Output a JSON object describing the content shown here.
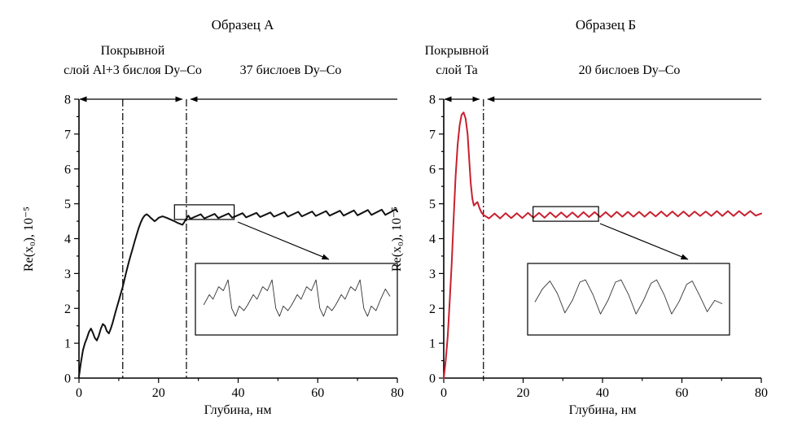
{
  "figure": {
    "background": "#ffffff"
  },
  "chart_data": [
    {
      "type": "line",
      "title": "Образец А",
      "xlabel": "Глубина, нм",
      "ylabel": "Re(x₀), 10⁻⁵",
      "xlim": [
        0,
        80
      ],
      "ylim": [
        0,
        8
      ],
      "xticks": [
        0,
        20,
        40,
        60,
        80
      ],
      "yticks": [
        0,
        1,
        2,
        3,
        4,
        5,
        6,
        7,
        8
      ],
      "color": "#111111",
      "grid": false,
      "vlines_dashdot": [
        11,
        27
      ],
      "region_boundary": 27,
      "regions": [
        {
          "label_line1": "Покрывной",
          "label_line2": "слой Al+3 бислоя Dy–Co",
          "from": 0,
          "to": 27
        },
        {
          "label": "37 бислоев Dy–Co",
          "from": 27,
          "to": 80
        }
      ],
      "zoom_box": {
        "x": [
          24,
          39
        ],
        "y": [
          4.55,
          4.97
        ]
      },
      "series": [
        {
          "points": [
            [
              0,
              0.05
            ],
            [
              0.5,
              0.45
            ],
            [
              1,
              0.8
            ],
            [
              1.5,
              1.0
            ],
            [
              2,
              1.15
            ],
            [
              2.5,
              1.32
            ],
            [
              3,
              1.42
            ],
            [
              3.5,
              1.3
            ],
            [
              4,
              1.15
            ],
            [
              4.5,
              1.08
            ],
            [
              5,
              1.22
            ],
            [
              5.5,
              1.42
            ],
            [
              6,
              1.55
            ],
            [
              6.5,
              1.5
            ],
            [
              7,
              1.35
            ],
            [
              7.5,
              1.28
            ],
            [
              8,
              1.42
            ],
            [
              8.5,
              1.6
            ],
            [
              9,
              1.82
            ],
            [
              9.5,
              2.02
            ],
            [
              10,
              2.22
            ],
            [
              10.5,
              2.42
            ],
            [
              11,
              2.62
            ],
            [
              11.5,
              2.86
            ],
            [
              12,
              3.1
            ],
            [
              12.5,
              3.32
            ],
            [
              13,
              3.52
            ],
            [
              13.5,
              3.72
            ],
            [
              14,
              3.92
            ],
            [
              14.5,
              4.12
            ],
            [
              15,
              4.3
            ],
            [
              15.5,
              4.46
            ],
            [
              16,
              4.58
            ],
            [
              16.5,
              4.66
            ],
            [
              17,
              4.7
            ],
            [
              17.5,
              4.66
            ],
            [
              18,
              4.6
            ],
            [
              18.5,
              4.55
            ],
            [
              19,
              4.5
            ],
            [
              19.5,
              4.54
            ],
            [
              20,
              4.6
            ],
            [
              21,
              4.64
            ],
            [
              22,
              4.6
            ],
            [
              23,
              4.55
            ],
            [
              24,
              4.5
            ],
            [
              25,
              4.44
            ],
            [
              26,
              4.4
            ],
            [
              26.5,
              4.48
            ],
            [
              27,
              4.58
            ],
            [
              27.5,
              4.66
            ],
            [
              28,
              4.57
            ],
            [
              30.6,
              4.7
            ],
            [
              31.5,
              4.58
            ],
            [
              34.1,
              4.71
            ],
            [
              35,
              4.59
            ],
            [
              37.6,
              4.72
            ],
            [
              38.5,
              4.6
            ],
            [
              41.1,
              4.73
            ],
            [
              42,
              4.61
            ],
            [
              44.6,
              4.74
            ],
            [
              45.5,
              4.62
            ],
            [
              48.1,
              4.75
            ],
            [
              49,
              4.63
            ],
            [
              51.6,
              4.76
            ],
            [
              52.5,
              4.63
            ],
            [
              55.1,
              4.77
            ],
            [
              56,
              4.64
            ],
            [
              58.6,
              4.78
            ],
            [
              59.5,
              4.65
            ],
            [
              62.1,
              4.79
            ],
            [
              63,
              4.66
            ],
            [
              65.6,
              4.8
            ],
            [
              66.5,
              4.66
            ],
            [
              69.1,
              4.81
            ],
            [
              70,
              4.67
            ],
            [
              72.6,
              4.82
            ],
            [
              73.5,
              4.68
            ],
            [
              76.1,
              4.83
            ],
            [
              77,
              4.68
            ],
            [
              79.6,
              4.84
            ],
            [
              80,
              4.78
            ]
          ]
        }
      ],
      "inset_points": [
        [
          0.005,
          0.6
        ],
        [
          0.035,
          0.42
        ],
        [
          0.055,
          0.5
        ],
        [
          0.085,
          0.28
        ],
        [
          0.11,
          0.35
        ],
        [
          0.135,
          0.16
        ],
        [
          0.155,
          0.66
        ],
        [
          0.175,
          0.8
        ],
        [
          0.195,
          0.62
        ],
        [
          0.22,
          0.7
        ],
        [
          0.24,
          0.6
        ],
        [
          0.27,
          0.42
        ],
        [
          0.29,
          0.5
        ],
        [
          0.32,
          0.28
        ],
        [
          0.345,
          0.35
        ],
        [
          0.37,
          0.16
        ],
        [
          0.39,
          0.66
        ],
        [
          0.41,
          0.8
        ],
        [
          0.43,
          0.62
        ],
        [
          0.455,
          0.7
        ],
        [
          0.475,
          0.6
        ],
        [
          0.505,
          0.42
        ],
        [
          0.525,
          0.5
        ],
        [
          0.555,
          0.28
        ],
        [
          0.58,
          0.35
        ],
        [
          0.605,
          0.16
        ],
        [
          0.625,
          0.66
        ],
        [
          0.645,
          0.8
        ],
        [
          0.665,
          0.62
        ],
        [
          0.69,
          0.7
        ],
        [
          0.71,
          0.6
        ],
        [
          0.74,
          0.42
        ],
        [
          0.76,
          0.5
        ],
        [
          0.79,
          0.28
        ],
        [
          0.815,
          0.35
        ],
        [
          0.84,
          0.16
        ],
        [
          0.86,
          0.66
        ],
        [
          0.88,
          0.8
        ],
        [
          0.9,
          0.62
        ],
        [
          0.925,
          0.7
        ],
        [
          0.95,
          0.5
        ],
        [
          0.975,
          0.32
        ],
        [
          1.0,
          0.45
        ]
      ]
    },
    {
      "type": "line",
      "title": "Образец Б",
      "xlabel": "Глубина, нм",
      "ylabel": "Re(x₀), 10⁻⁵",
      "xlim": [
        0,
        80
      ],
      "ylim": [
        0,
        8
      ],
      "xticks": [
        0,
        20,
        40,
        60,
        80
      ],
      "yticks": [
        0,
        1,
        2,
        3,
        4,
        5,
        6,
        7,
        8
      ],
      "color": "#c8202f",
      "grid": false,
      "vlines_dashdot": [
        10
      ],
      "region_boundary": 10,
      "regions": [
        {
          "label_line1": "Покрывной",
          "label_line2": "слой Ta",
          "from": 0,
          "to": 10
        },
        {
          "label": "20 бислоев Dy–Co",
          "from": 10,
          "to": 80
        }
      ],
      "zoom_box": {
        "x": [
          22.5,
          39
        ],
        "y": [
          4.5,
          4.92
        ]
      },
      "series": [
        {
          "points": [
            [
              0,
              0.0
            ],
            [
              0.5,
              0.5
            ],
            [
              1,
              1.2
            ],
            [
              1.5,
              2.2
            ],
            [
              2,
              3.3
            ],
            [
              2.5,
              4.6
            ],
            [
              3,
              5.8
            ],
            [
              3.5,
              6.7
            ],
            [
              4,
              7.25
            ],
            [
              4.5,
              7.55
            ],
            [
              5,
              7.62
            ],
            [
              5.5,
              7.45
            ],
            [
              6,
              7.0
            ],
            [
              6.4,
              6.3
            ],
            [
              6.8,
              5.6
            ],
            [
              7.2,
              5.15
            ],
            [
              7.6,
              4.95
            ],
            [
              8,
              5.0
            ],
            [
              8.5,
              5.05
            ],
            [
              9,
              4.88
            ],
            [
              9.5,
              4.75
            ],
            [
              10,
              4.68
            ],
            [
              11.4,
              4.58
            ],
            [
              12.8,
              4.72
            ],
            [
              14.2,
              4.58
            ],
            [
              15.6,
              4.73
            ],
            [
              17,
              4.59
            ],
            [
              18.4,
              4.73
            ],
            [
              19.8,
              4.59
            ],
            [
              21.2,
              4.74
            ],
            [
              22.6,
              4.6
            ],
            [
              24,
              4.74
            ],
            [
              25.4,
              4.6
            ],
            [
              26.8,
              4.75
            ],
            [
              28.2,
              4.61
            ],
            [
              29.6,
              4.75
            ],
            [
              31,
              4.61
            ],
            [
              32.4,
              4.75
            ],
            [
              33.8,
              4.61
            ],
            [
              35.2,
              4.76
            ],
            [
              36.6,
              4.62
            ],
            [
              38,
              4.76
            ],
            [
              39.4,
              4.62
            ],
            [
              40.8,
              4.76
            ],
            [
              42.2,
              4.62
            ],
            [
              43.6,
              4.77
            ],
            [
              45,
              4.63
            ],
            [
              46.4,
              4.77
            ],
            [
              47.8,
              4.63
            ],
            [
              49.2,
              4.77
            ],
            [
              50.6,
              4.63
            ],
            [
              52,
              4.77
            ],
            [
              53.4,
              4.64
            ],
            [
              54.8,
              4.78
            ],
            [
              56.2,
              4.64
            ],
            [
              57.6,
              4.78
            ],
            [
              59,
              4.64
            ],
            [
              60.4,
              4.78
            ],
            [
              61.8,
              4.64
            ],
            [
              63.2,
              4.78
            ],
            [
              64.6,
              4.65
            ],
            [
              66,
              4.78
            ],
            [
              67.4,
              4.65
            ],
            [
              68.8,
              4.79
            ],
            [
              70.2,
              4.65
            ],
            [
              71.6,
              4.79
            ],
            [
              73,
              4.65
            ],
            [
              74.4,
              4.79
            ],
            [
              75.8,
              4.66
            ],
            [
              77.2,
              4.79
            ],
            [
              78.6,
              4.66
            ],
            [
              80,
              4.72
            ]
          ]
        }
      ],
      "inset_points": [
        [
          0.0,
          0.55
        ],
        [
          0.04,
          0.32
        ],
        [
          0.08,
          0.18
        ],
        [
          0.12,
          0.4
        ],
        [
          0.16,
          0.74
        ],
        [
          0.2,
          0.52
        ],
        [
          0.24,
          0.2
        ],
        [
          0.27,
          0.16
        ],
        [
          0.31,
          0.42
        ],
        [
          0.35,
          0.76
        ],
        [
          0.39,
          0.52
        ],
        [
          0.43,
          0.2
        ],
        [
          0.46,
          0.16
        ],
        [
          0.5,
          0.42
        ],
        [
          0.54,
          0.76
        ],
        [
          0.58,
          0.52
        ],
        [
          0.62,
          0.22
        ],
        [
          0.65,
          0.16
        ],
        [
          0.69,
          0.42
        ],
        [
          0.73,
          0.76
        ],
        [
          0.77,
          0.54
        ],
        [
          0.81,
          0.24
        ],
        [
          0.84,
          0.18
        ],
        [
          0.88,
          0.44
        ],
        [
          0.92,
          0.72
        ],
        [
          0.96,
          0.52
        ],
        [
          1.0,
          0.58
        ]
      ]
    }
  ]
}
